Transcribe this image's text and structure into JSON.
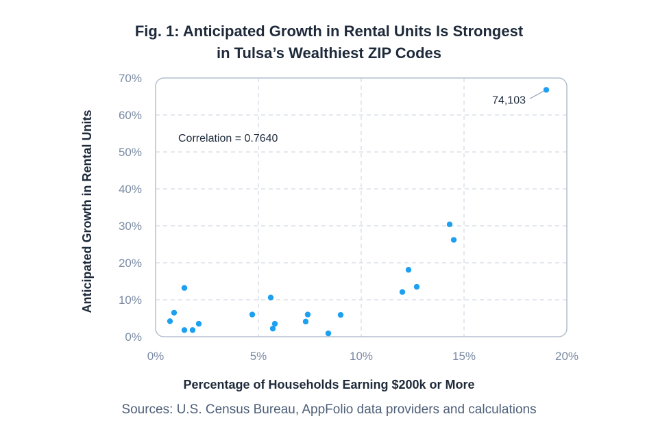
{
  "title": {
    "line1": "Fig. 1: Anticipated Growth in Rental Units Is Strongest",
    "line2": "in Tulsa’s Wealthiest ZIP Codes"
  },
  "source": "Sources: U.S. Census Bureau, AppFolio data providers and calculations",
  "chart_data": {
    "type": "scatter",
    "xlabel": "Percentage of Households Earning $200k or More",
    "ylabel": "Anticipated Growth in Rental Units",
    "xlim": [
      0,
      20
    ],
    "ylim": [
      0,
      70
    ],
    "x_ticks": [
      0,
      5,
      10,
      15,
      20
    ],
    "x_tick_labels": [
      "0%",
      "5%",
      "10%",
      "15%",
      "20%"
    ],
    "y_ticks": [
      0,
      10,
      20,
      30,
      40,
      50,
      60,
      70
    ],
    "y_tick_labels": [
      "0%",
      "10%",
      "20%",
      "30%",
      "40%",
      "50%",
      "60%",
      "70%"
    ],
    "grid": true,
    "point_color": "#1ea0f0",
    "points": [
      {
        "x": 0.7,
        "y": 4.2
      },
      {
        "x": 0.9,
        "y": 6.5
      },
      {
        "x": 1.4,
        "y": 1.8
      },
      {
        "x": 1.4,
        "y": 13.2
      },
      {
        "x": 1.8,
        "y": 1.8
      },
      {
        "x": 2.1,
        "y": 3.5
      },
      {
        "x": 4.7,
        "y": 6.0
      },
      {
        "x": 5.6,
        "y": 10.6
      },
      {
        "x": 5.7,
        "y": 2.2
      },
      {
        "x": 5.8,
        "y": 3.5
      },
      {
        "x": 7.3,
        "y": 4.1
      },
      {
        "x": 7.4,
        "y": 6.0
      },
      {
        "x": 8.4,
        "y": 0.9
      },
      {
        "x": 9.0,
        "y": 5.9
      },
      {
        "x": 12.0,
        "y": 12.1
      },
      {
        "x": 12.3,
        "y": 18.1
      },
      {
        "x": 12.7,
        "y": 13.5
      },
      {
        "x": 14.3,
        "y": 30.4
      },
      {
        "x": 14.5,
        "y": 26.2
      },
      {
        "x": 19.0,
        "y": 66.8
      }
    ],
    "annotations": [
      {
        "text": "Correlation = 0.7640"
      },
      {
        "text": "74,103",
        "x": 19.0,
        "y": 66.8
      }
    ]
  }
}
